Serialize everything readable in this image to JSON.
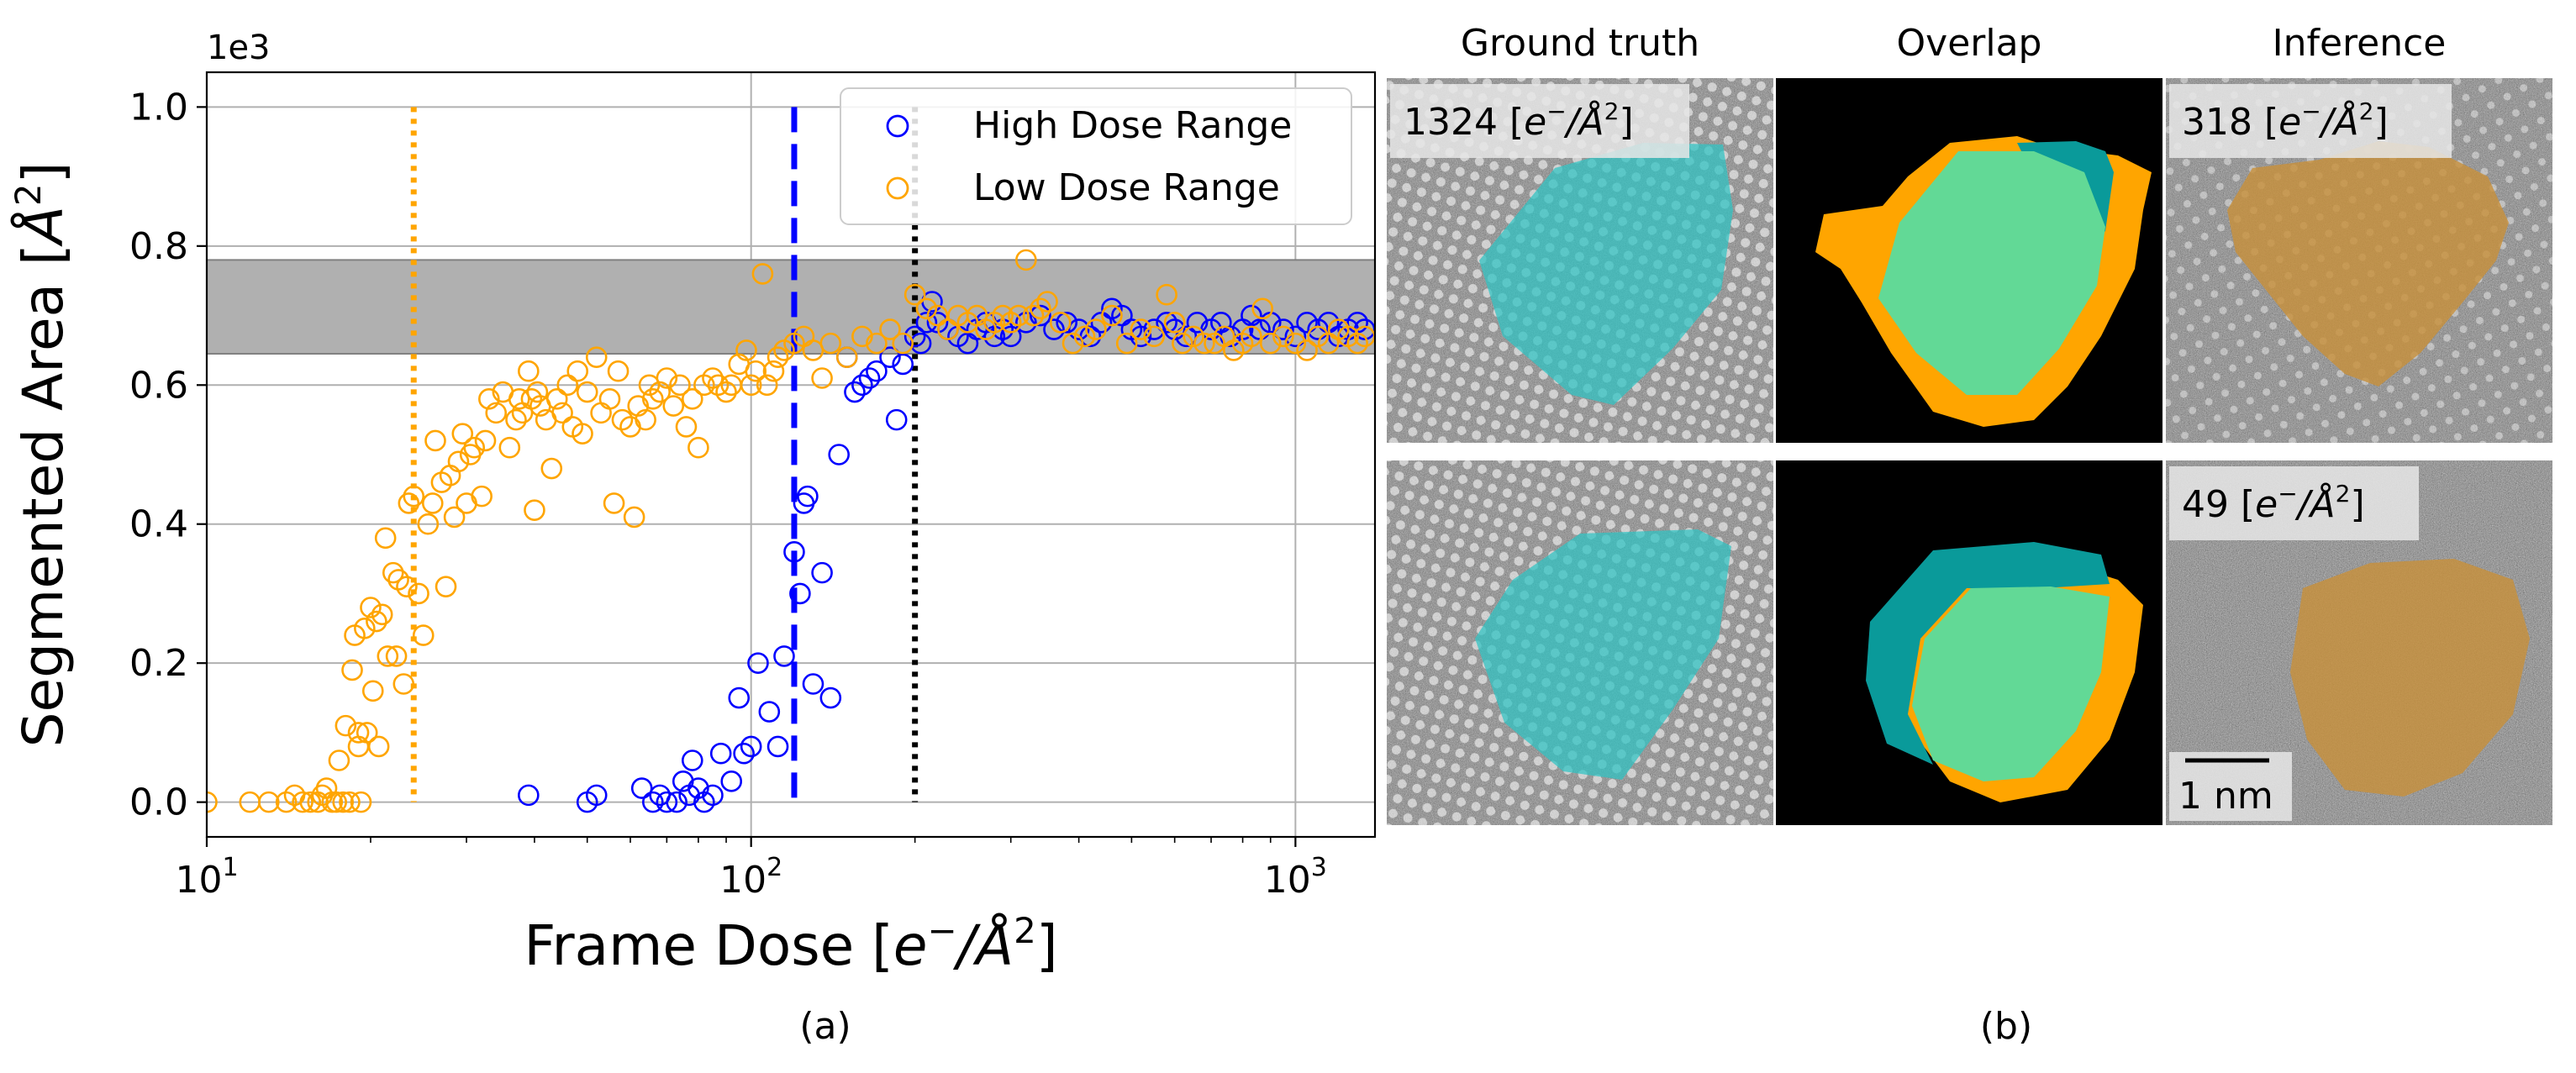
{
  "chart_data": [
    {
      "type": "scatter",
      "panel_caption": "(a)",
      "xlabel_text": "Frame Dose [",
      "xlabel_math": "e",
      "xlabel_sup": "−",
      "xlabel_rest": "/Å",
      "xlabel_sup2": "2",
      "xlabel_close": "]",
      "ylabel_text": "Segmented Area [",
      "ylabel_math": "Å",
      "ylabel_sup": "2",
      "ylabel_close": "]",
      "y_offset_label": "1e3",
      "x_scale": "log",
      "xlim": [
        10,
        1400
      ],
      "ylim": [
        -0.05,
        1.05
      ],
      "x_ticks": [
        {
          "value": 10,
          "base": "10",
          "exp": "1"
        },
        {
          "value": 100,
          "base": "10",
          "exp": "2"
        },
        {
          "value": 1000,
          "base": "10",
          "exp": "3"
        }
      ],
      "y_ticks": [
        {
          "value": 0.0,
          "label": "0.0"
        },
        {
          "value": 0.2,
          "label": "0.2"
        },
        {
          "value": 0.4,
          "label": "0.4"
        },
        {
          "value": 0.6,
          "label": "0.6"
        },
        {
          "value": 0.8,
          "label": "0.8"
        },
        {
          "value": 1.0,
          "label": "1.0"
        }
      ],
      "grid": true,
      "legend_position": "top-right",
      "band": {
        "y_low": 0.645,
        "y_high": 0.78,
        "color": "#b0b0b0"
      },
      "vlines": [
        {
          "x": 24,
          "style": "dotted",
          "color": "#ffa500"
        },
        {
          "x": 120,
          "style": "dashed",
          "color": "#0000ff"
        },
        {
          "x": 200,
          "style": "dotted",
          "color": "#000000"
        }
      ],
      "series": [
        {
          "name": "High Dose Range",
          "color": "#0000ff",
          "marker": "open-circle",
          "points": [
            [
              39,
              0.01
            ],
            [
              50,
              0.0
            ],
            [
              52,
              0.01
            ],
            [
              63,
              0.02
            ],
            [
              66,
              0.0
            ],
            [
              68,
              0.01
            ],
            [
              70,
              0.0
            ],
            [
              73,
              0.0
            ],
            [
              75,
              0.03
            ],
            [
              77,
              0.01
            ],
            [
              78,
              0.06
            ],
            [
              80,
              0.02
            ],
            [
              82,
              0.0
            ],
            [
              85,
              0.01
            ],
            [
              88,
              0.07
            ],
            [
              92,
              0.03
            ],
            [
              95,
              0.15
            ],
            [
              97,
              0.07
            ],
            [
              100,
              0.08
            ],
            [
              103,
              0.2
            ],
            [
              108,
              0.13
            ],
            [
              112,
              0.08
            ],
            [
              115,
              0.21
            ],
            [
              120,
              0.36
            ],
            [
              123,
              0.3
            ],
            [
              125,
              0.43
            ],
            [
              127,
              0.44
            ],
            [
              130,
              0.17
            ],
            [
              135,
              0.33
            ],
            [
              140,
              0.15
            ],
            [
              145,
              0.5
            ],
            [
              150,
              0.64
            ],
            [
              155,
              0.59
            ],
            [
              160,
              0.6
            ],
            [
              165,
              0.61
            ],
            [
              170,
              0.62
            ],
            [
              180,
              0.64
            ],
            [
              185,
              0.55
            ],
            [
              190,
              0.63
            ],
            [
              200,
              0.67
            ],
            [
              205,
              0.66
            ],
            [
              210,
              0.69
            ],
            [
              215,
              0.72
            ],
            [
              220,
              0.69
            ],
            [
              230,
              0.68
            ],
            [
              240,
              0.67
            ],
            [
              250,
              0.66
            ],
            [
              260,
              0.68
            ],
            [
              270,
              0.69
            ],
            [
              280,
              0.67
            ],
            [
              290,
              0.68
            ],
            [
              300,
              0.67
            ],
            [
              320,
              0.69
            ],
            [
              340,
              0.7
            ],
            [
              360,
              0.68
            ],
            [
              380,
              0.69
            ],
            [
              400,
              0.68
            ],
            [
              420,
              0.67
            ],
            [
              440,
              0.69
            ],
            [
              460,
              0.71
            ],
            [
              480,
              0.7
            ],
            [
              500,
              0.68
            ],
            [
              520,
              0.67
            ],
            [
              550,
              0.68
            ],
            [
              580,
              0.69
            ],
            [
              600,
              0.68
            ],
            [
              630,
              0.67
            ],
            [
              660,
              0.69
            ],
            [
              700,
              0.68
            ],
            [
              730,
              0.69
            ],
            [
              760,
              0.67
            ],
            [
              800,
              0.68
            ],
            [
              830,
              0.7
            ],
            [
              860,
              0.68
            ],
            [
              900,
              0.69
            ],
            [
              950,
              0.68
            ],
            [
              1000,
              0.67
            ],
            [
              1050,
              0.69
            ],
            [
              1100,
              0.68
            ],
            [
              1150,
              0.69
            ],
            [
              1200,
              0.67
            ],
            [
              1250,
              0.68
            ],
            [
              1300,
              0.69
            ],
            [
              1340,
              0.68
            ]
          ]
        },
        {
          "name": "Low Dose Range",
          "color": "#ffa500",
          "marker": "open-circle",
          "points": [
            [
              10,
              0.0
            ],
            [
              12,
              0.0
            ],
            [
              13,
              0.0
            ],
            [
              14,
              0.0
            ],
            [
              14.5,
              0.01
            ],
            [
              15,
              0.0
            ],
            [
              15.5,
              0.0
            ],
            [
              16,
              0.0
            ],
            [
              16.3,
              0.01
            ],
            [
              16.6,
              0.02
            ],
            [
              17,
              0.0
            ],
            [
              17.3,
              0.0
            ],
            [
              17.5,
              0.06
            ],
            [
              17.8,
              0.0
            ],
            [
              18,
              0.11
            ],
            [
              18.3,
              0.0
            ],
            [
              18.5,
              0.19
            ],
            [
              18.7,
              0.24
            ],
            [
              19,
              0.08
            ],
            [
              19,
              0.1
            ],
            [
              19.2,
              0.0
            ],
            [
              19.5,
              0.25
            ],
            [
              19.7,
              0.1
            ],
            [
              20,
              0.28
            ],
            [
              20.2,
              0.16
            ],
            [
              20.5,
              0.26
            ],
            [
              20.7,
              0.08
            ],
            [
              21,
              0.27
            ],
            [
              21.3,
              0.38
            ],
            [
              21.5,
              0.21
            ],
            [
              22,
              0.33
            ],
            [
              22.3,
              0.21
            ],
            [
              22.5,
              0.32
            ],
            [
              23,
              0.17
            ],
            [
              23.3,
              0.31
            ],
            [
              23.5,
              0.43
            ],
            [
              24,
              0.44
            ],
            [
              24.5,
              0.3
            ],
            [
              25,
              0.24
            ],
            [
              25.5,
              0.4
            ],
            [
              26,
              0.43
            ],
            [
              26.3,
              0.52
            ],
            [
              27,
              0.46
            ],
            [
              27.5,
              0.31
            ],
            [
              28,
              0.47
            ],
            [
              28.5,
              0.41
            ],
            [
              29,
              0.49
            ],
            [
              29.5,
              0.53
            ],
            [
              30,
              0.43
            ],
            [
              30.5,
              0.5
            ],
            [
              31,
              0.51
            ],
            [
              32,
              0.44
            ],
            [
              32.5,
              0.52
            ],
            [
              33,
              0.58
            ],
            [
              34,
              0.56
            ],
            [
              35,
              0.59
            ],
            [
              36,
              0.51
            ],
            [
              37,
              0.55
            ],
            [
              37.5,
              0.58
            ],
            [
              38,
              0.56
            ],
            [
              39,
              0.62
            ],
            [
              39.5,
              0.58
            ],
            [
              40,
              0.42
            ],
            [
              40.5,
              0.59
            ],
            [
              41,
              0.57
            ],
            [
              42,
              0.55
            ],
            [
              43,
              0.48
            ],
            [
              44,
              0.58
            ],
            [
              45,
              0.56
            ],
            [
              46,
              0.6
            ],
            [
              47,
              0.54
            ],
            [
              48,
              0.62
            ],
            [
              49,
              0.53
            ],
            [
              50,
              0.59
            ],
            [
              52,
              0.64
            ],
            [
              53,
              0.56
            ],
            [
              55,
              0.58
            ],
            [
              56,
              0.43
            ],
            [
              57,
              0.62
            ],
            [
              58,
              0.55
            ],
            [
              60,
              0.54
            ],
            [
              61,
              0.41
            ],
            [
              62,
              0.57
            ],
            [
              64,
              0.55
            ],
            [
              65,
              0.6
            ],
            [
              66,
              0.58
            ],
            [
              68,
              0.59
            ],
            [
              70,
              0.61
            ],
            [
              72,
              0.57
            ],
            [
              74,
              0.6
            ],
            [
              76,
              0.54
            ],
            [
              78,
              0.58
            ],
            [
              80,
              0.51
            ],
            [
              82,
              0.6
            ],
            [
              85,
              0.61
            ],
            [
              87,
              0.6
            ],
            [
              90,
              0.59
            ],
            [
              92,
              0.6
            ],
            [
              95,
              0.63
            ],
            [
              98,
              0.65
            ],
            [
              100,
              0.6
            ],
            [
              102,
              0.62
            ],
            [
              105,
              0.76
            ],
            [
              107,
              0.6
            ],
            [
              110,
              0.62
            ],
            [
              112,
              0.64
            ],
            [
              115,
              0.65
            ],
            [
              120,
              0.66
            ],
            [
              125,
              0.67
            ],
            [
              130,
              0.65
            ],
            [
              135,
              0.61
            ],
            [
              140,
              0.66
            ],
            [
              150,
              0.64
            ],
            [
              160,
              0.67
            ],
            [
              170,
              0.66
            ],
            [
              180,
              0.68
            ],
            [
              190,
              0.66
            ],
            [
              200,
              0.73
            ],
            [
              210,
              0.71
            ],
            [
              220,
              0.7
            ],
            [
              230,
              0.68
            ],
            [
              240,
              0.7
            ],
            [
              250,
              0.69
            ],
            [
              260,
              0.7
            ],
            [
              270,
              0.68
            ],
            [
              280,
              0.69
            ],
            [
              290,
              0.7
            ],
            [
              300,
              0.69
            ],
            [
              310,
              0.7
            ],
            [
              320,
              0.78
            ],
            [
              330,
              0.7
            ],
            [
              340,
              0.71
            ],
            [
              350,
              0.72
            ],
            [
              370,
              0.69
            ],
            [
              390,
              0.66
            ],
            [
              410,
              0.67
            ],
            [
              430,
              0.68
            ],
            [
              460,
              0.7
            ],
            [
              490,
              0.66
            ],
            [
              520,
              0.68
            ],
            [
              550,
              0.67
            ],
            [
              580,
              0.73
            ],
            [
              600,
              0.69
            ],
            [
              620,
              0.66
            ],
            [
              650,
              0.67
            ],
            [
              680,
              0.66
            ],
            [
              710,
              0.66
            ],
            [
              740,
              0.67
            ],
            [
              770,
              0.65
            ],
            [
              800,
              0.66
            ],
            [
              830,
              0.67
            ],
            [
              870,
              0.71
            ],
            [
              900,
              0.66
            ],
            [
              950,
              0.67
            ],
            [
              1000,
              0.66
            ],
            [
              1050,
              0.65
            ],
            [
              1100,
              0.67
            ],
            [
              1150,
              0.66
            ],
            [
              1200,
              0.68
            ],
            [
              1250,
              0.67
            ],
            [
              1300,
              0.66
            ],
            [
              1340,
              0.67
            ]
          ]
        }
      ]
    }
  ],
  "image_panels": {
    "caption": "(b)",
    "column_titles": [
      "Ground truth",
      "Overlap",
      "Inference"
    ],
    "dose_labels": [
      {
        "value": "1324 [",
        "math": "e",
        "sup": "−",
        "rest": "/Å",
        "sup2": "2",
        "close": "]"
      },
      {
        "value": "318 [",
        "math": "e",
        "sup": "−",
        "rest": "/Å",
        "sup2": "2",
        "close": "]"
      },
      {
        "value": "49 [",
        "math": "e",
        "sup": "−",
        "rest": "/Å",
        "sup2": "2",
        "close": "]"
      }
    ],
    "scale_bar_label": "1 nm",
    "colors": {
      "ground_truth_mask": "#2ec4c4",
      "inference_mask": "#c8903a",
      "overlap_agree": "#62d996",
      "overlap_gt_only": "#0a9a9a",
      "overlap_inf_only": "#ffa500",
      "micrograph_background": "#8a8a8a"
    }
  }
}
